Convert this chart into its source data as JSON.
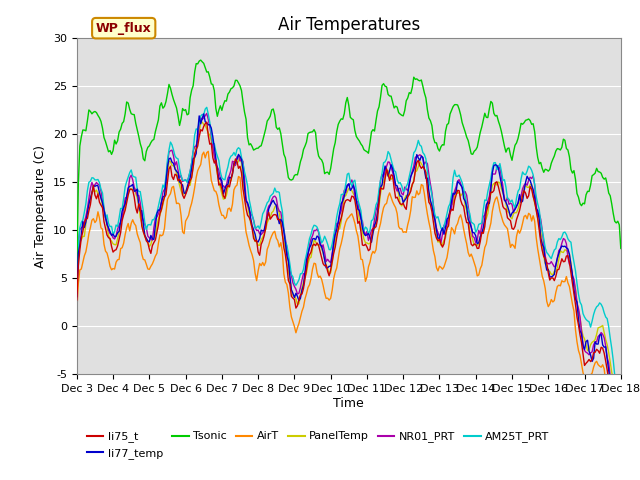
{
  "title": "Air Temperatures",
  "xlabel": "Time",
  "ylabel": "Air Temperature (C)",
  "ylim": [
    -5,
    30
  ],
  "xlim": [
    0,
    360
  ],
  "xtick_positions": [
    0,
    24,
    48,
    72,
    96,
    120,
    144,
    168,
    192,
    216,
    240,
    264,
    288,
    312,
    336,
    360
  ],
  "xtick_labels": [
    "Dec 3",
    "Dec 4",
    "Dec 5",
    "Dec 6",
    "Dec 7",
    "Dec 8",
    "Dec 9",
    "Dec 10",
    "Dec 11",
    "Dec 12",
    "Dec 13",
    "Dec 14",
    "Dec 15",
    "Dec 16",
    "Dec 17",
    "Dec 18"
  ],
  "ytick_positions": [
    -5,
    0,
    5,
    10,
    15,
    20,
    25,
    30
  ],
  "series_colors": {
    "li75_t": "#cc0000",
    "li77_temp": "#0000cc",
    "Tsonic": "#00cc00",
    "AirT": "#ff8800",
    "PanelTemp": "#cccc00",
    "NR01_PRT": "#aa00aa",
    "AM25T_PRT": "#00cccc"
  },
  "annotation_text": "WP_flux",
  "background_color": "#ffffff",
  "plot_bg_color": "#e0e0e0",
  "grid_color": "#ffffff",
  "title_fontsize": 12,
  "label_fontsize": 9,
  "tick_fontsize": 8
}
